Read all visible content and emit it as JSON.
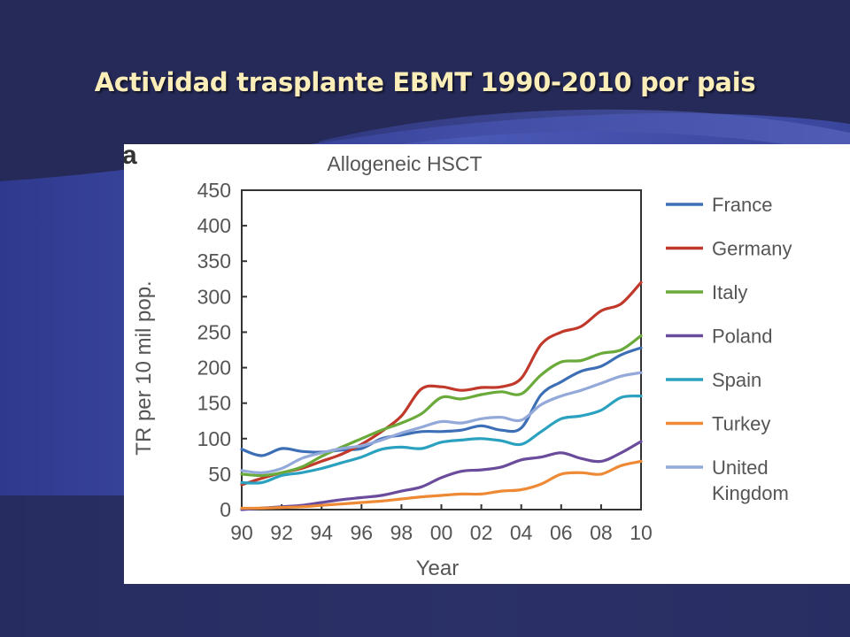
{
  "slide": {
    "title": "Actividad trasplante EBMT 1990-2010 por pais"
  },
  "figure": {
    "panel_label": "a"
  },
  "colors": {
    "background": "#262a58",
    "title": "#fbeeb8"
  },
  "chart_data": {
    "type": "line",
    "title": "Allogeneic HSCT",
    "xlabel": "Year",
    "ylabel": "TR per 10 mil pop.",
    "xlim": [
      1990,
      2010
    ],
    "ylim": [
      0,
      450
    ],
    "x": [
      1990,
      1991,
      1992,
      1993,
      1994,
      1995,
      1996,
      1997,
      1998,
      1999,
      2000,
      2001,
      2002,
      2003,
      2004,
      2005,
      2006,
      2007,
      2008,
      2009,
      2010
    ],
    "xticks": [
      "90",
      "92",
      "94",
      "96",
      "98",
      "00",
      "02",
      "04",
      "06",
      "08",
      "10"
    ],
    "xtick_values": [
      1990,
      1992,
      1994,
      1996,
      1998,
      2000,
      2002,
      2004,
      2006,
      2008,
      2010
    ],
    "yticks": [
      0,
      50,
      100,
      150,
      200,
      250,
      300,
      350,
      400,
      450
    ],
    "grid": false,
    "legend_position": "right",
    "series": [
      {
        "name": "France",
        "color": "#3d6fb6",
        "values": [
          85,
          76,
          86,
          82,
          81,
          84,
          86,
          100,
          105,
          110,
          110,
          112,
          118,
          112,
          115,
          162,
          180,
          195,
          202,
          218,
          228
        ]
      },
      {
        "name": "Germany",
        "color": "#c0392b",
        "values": [
          35,
          44,
          52,
          58,
          68,
          78,
          92,
          110,
          132,
          170,
          173,
          168,
          172,
          173,
          185,
          233,
          250,
          258,
          280,
          290,
          320
        ]
      },
      {
        "name": "Italy",
        "color": "#6aaa3a",
        "values": [
          50,
          48,
          52,
          60,
          75,
          88,
          100,
          112,
          122,
          135,
          158,
          156,
          162,
          166,
          163,
          190,
          208,
          210,
          220,
          225,
          245
        ]
      },
      {
        "name": "Poland",
        "color": "#6b4b9b",
        "values": [
          0,
          2,
          4,
          6,
          10,
          14,
          17,
          20,
          26,
          32,
          45,
          54,
          56,
          60,
          70,
          74,
          80,
          72,
          68,
          80,
          96
        ]
      },
      {
        "name": "Spain",
        "color": "#2aa1bf",
        "values": [
          38,
          38,
          48,
          52,
          58,
          66,
          74,
          85,
          88,
          86,
          95,
          98,
          100,
          97,
          92,
          110,
          128,
          132,
          140,
          158,
          160
        ]
      },
      {
        "name": "Turkey",
        "color": "#ee8a35",
        "values": [
          2,
          2,
          3,
          4,
          6,
          8,
          10,
          12,
          15,
          18,
          20,
          22,
          22,
          26,
          28,
          36,
          50,
          52,
          50,
          62,
          68
        ]
      },
      {
        "name": "United Kingdom",
        "color": "#93a9d9",
        "values": [
          55,
          52,
          58,
          72,
          80,
          86,
          90,
          98,
          108,
          116,
          124,
          122,
          128,
          130,
          126,
          148,
          160,
          168,
          178,
          188,
          193
        ]
      }
    ],
    "legend_entries": [
      {
        "series": "France",
        "lines": [
          "France"
        ]
      },
      {
        "series": "Germany",
        "lines": [
          "Germany"
        ]
      },
      {
        "series": "Italy",
        "lines": [
          "Italy"
        ]
      },
      {
        "series": "Poland",
        "lines": [
          "Poland"
        ]
      },
      {
        "series": "Spain",
        "lines": [
          "Spain"
        ]
      },
      {
        "series": "Turkey",
        "lines": [
          "Turkey"
        ]
      },
      {
        "series": "United Kingdom",
        "lines": [
          "United",
          "Kingdom"
        ]
      }
    ]
  }
}
